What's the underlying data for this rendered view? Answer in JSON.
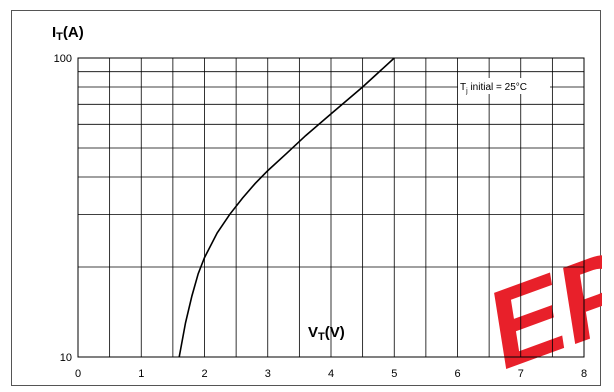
{
  "chart_data": {
    "type": "line",
    "title": "",
    "ylabel": {
      "main": "I",
      "sub": "T",
      "unit": "(A)"
    },
    "xlabel": {
      "main": "V",
      "sub": "T",
      "unit": "(V)"
    },
    "xlim": [
      0,
      8
    ],
    "ylim": [
      10,
      100
    ],
    "yscale": "log",
    "grid": true,
    "x_ticks": [
      {
        "v": 0,
        "label": "0"
      },
      {
        "v": 1,
        "label": "1"
      },
      {
        "v": 2,
        "label": "2"
      },
      {
        "v": 3,
        "label": "3"
      },
      {
        "v": 4,
        "label": "4"
      },
      {
        "v": 5,
        "label": "5"
      },
      {
        "v": 6,
        "label": "6"
      },
      {
        "v": 7,
        "label": "7"
      },
      {
        "v": 8,
        "label": "8"
      }
    ],
    "x_minor_grid": [
      0.5,
      1,
      1.5,
      2,
      2.5,
      3,
      3.5,
      4,
      4.5,
      5,
      5.5,
      6,
      6.5,
      7,
      7.5
    ],
    "y_ticks": [
      {
        "v": 10,
        "label": "10"
      },
      {
        "v": 100,
        "label": "100"
      }
    ],
    "y_grid": [
      20,
      30,
      40,
      50,
      60,
      70,
      80,
      90
    ],
    "series": [
      {
        "points": [
          {
            "x": 1.6,
            "y": 10
          },
          {
            "x": 1.7,
            "y": 13
          },
          {
            "x": 1.8,
            "y": 16
          },
          {
            "x": 1.9,
            "y": 19
          },
          {
            "x": 2.0,
            "y": 21.5
          },
          {
            "x": 2.2,
            "y": 26
          },
          {
            "x": 2.4,
            "y": 30
          },
          {
            "x": 2.6,
            "y": 34
          },
          {
            "x": 2.8,
            "y": 38
          },
          {
            "x": 3.0,
            "y": 42
          },
          {
            "x": 3.3,
            "y": 48
          },
          {
            "x": 3.6,
            "y": 55
          },
          {
            "x": 4.0,
            "y": 65
          },
          {
            "x": 4.5,
            "y": 80
          },
          {
            "x": 5.0,
            "y": 100
          }
        ]
      }
    ],
    "annotation": {
      "prefix": "T",
      "sub": "j",
      "text": " initial = 25°C"
    },
    "colors": {
      "line": "#000000",
      "grid": "#000000",
      "watermark": "#e8202a"
    }
  },
  "watermark": {
    "text": "EPM"
  }
}
